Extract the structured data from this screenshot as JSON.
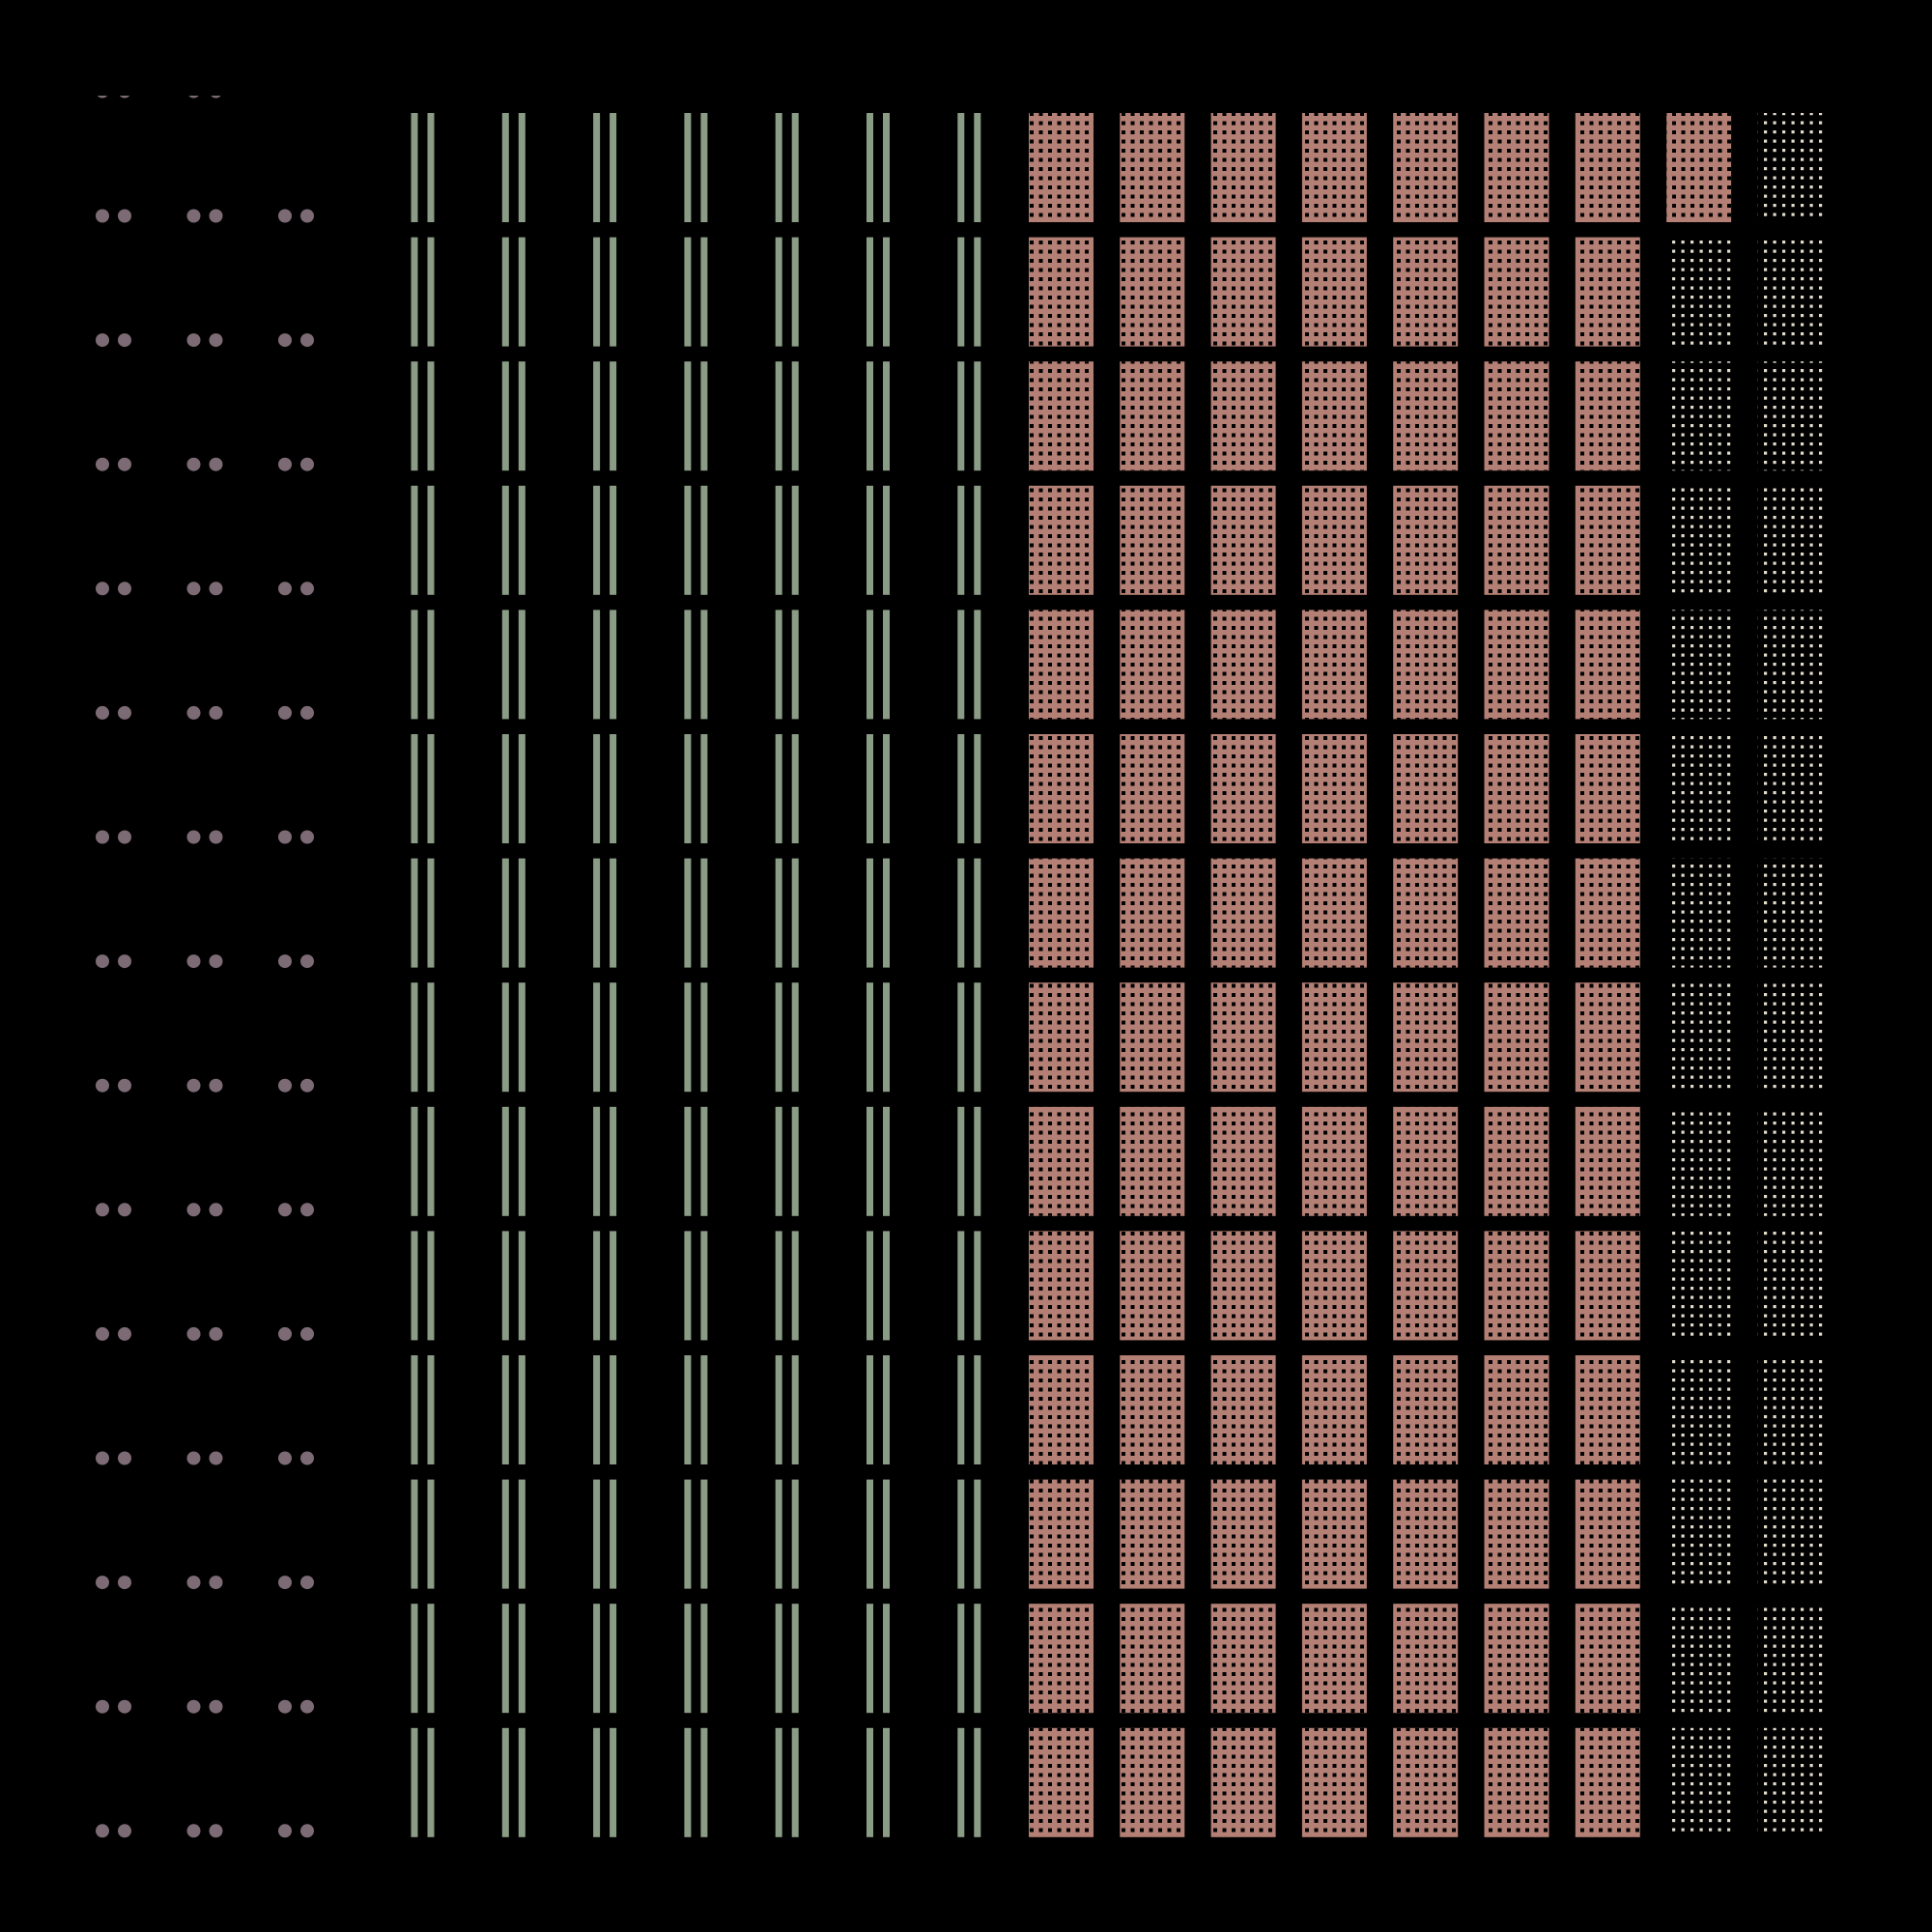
{
  "pattern": {
    "background_color": "#000000",
    "row_count": 14,
    "sections": [
      {
        "name": "dot-pairs",
        "motif": "paired-dots",
        "color": "#7c6b74",
        "columns": 3
      },
      {
        "name": "double-bars",
        "motif": "double-vertical-bars",
        "color": "#8a9c86",
        "columns": 7
      },
      {
        "name": "perforated-blocks",
        "motif": "rose-block-with-dark-dot-grid",
        "color": "#b47f74",
        "columns": 7,
        "extra_block_first_row": 1
      },
      {
        "name": "white-dot-grids",
        "motif": "sparse-light-dot-grid",
        "color": "#e2dccd",
        "columns": 2
      }
    ]
  }
}
